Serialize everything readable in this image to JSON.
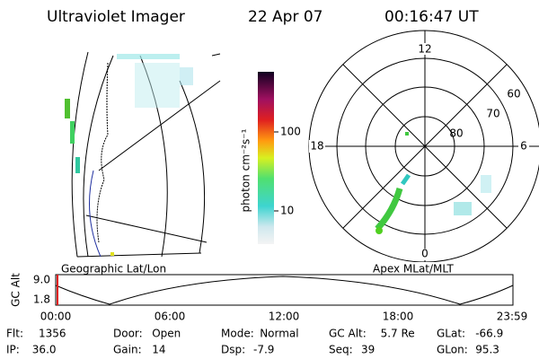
{
  "header": {
    "title": "Ultraviolet Imager",
    "date": "22 Apr 07",
    "time": "00:16:47 UT"
  },
  "geographic_panel": {
    "label": "Geographic Lat/Lon"
  },
  "colorbar": {
    "unit": "photon cm⁻²s⁻¹",
    "ticks": [
      "100",
      "10"
    ]
  },
  "polar_panel": {
    "label": "Apex MLat/MLT",
    "mlt_labels": [
      "12",
      "18",
      "6",
      "0"
    ],
    "lat_labels": [
      "60",
      "70",
      "80"
    ]
  },
  "altitude_plot": {
    "axis_label": "GC Alt",
    "y_labels": [
      "9.0",
      "1.8"
    ],
    "time_labels": [
      "00:00",
      "06:00",
      "12:00",
      "18:00",
      "23:59"
    ]
  },
  "info": [
    [
      {
        "label": "Flt:",
        "value": "1356"
      },
      {
        "label": "Door:",
        "value": "Open"
      },
      {
        "label": "Mode:",
        "value": "Normal"
      },
      {
        "label": "GC Alt:",
        "value": "5.7 Re"
      },
      {
        "label": "GLat:",
        "value": "-66.9"
      }
    ],
    [
      {
        "label": "IP:",
        "value": "36.0"
      },
      {
        "label": "Gain:",
        "value": "14"
      },
      {
        "label": "Dsp:",
        "value": "-7.9"
      },
      {
        "label": "Seq:",
        "value": "39"
      },
      {
        "label": "GLon:",
        "value": "95.3"
      }
    ]
  ]
}
